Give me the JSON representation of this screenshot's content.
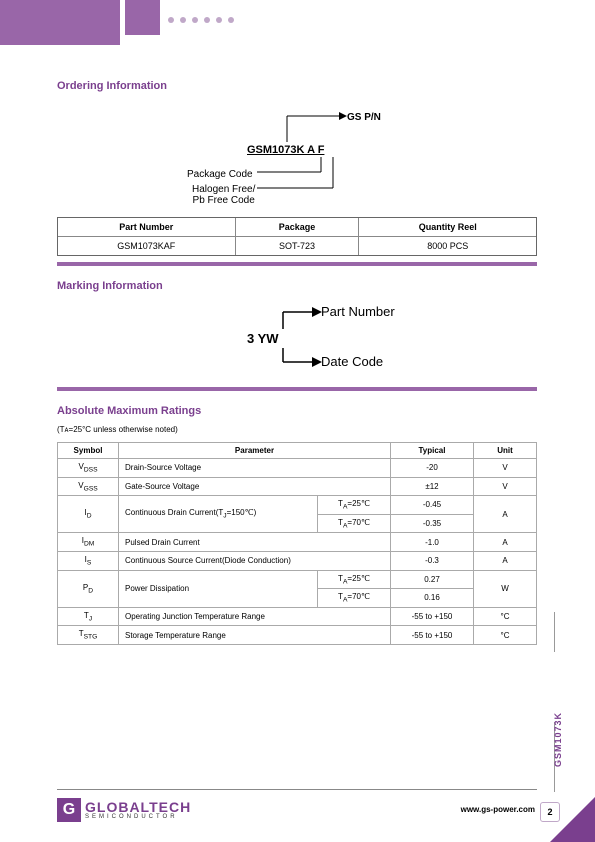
{
  "ordering": {
    "title": "Ordering Information",
    "partno": "GSM1073K A F",
    "gspn": "GS P/N",
    "package_code": "Package Code",
    "halogen": "Halogen Free/\nPb Free Code",
    "headers": [
      "Part Number",
      "Package",
      "Quantity Reel"
    ],
    "row": [
      "GSM1073KAF",
      "SOT-723",
      "8000 PCS"
    ]
  },
  "marking": {
    "title": "Marking Information",
    "code": "3 YW",
    "partnum_label": "Part Number",
    "datecode_label": "Date Code"
  },
  "ratings": {
    "title": "Absolute Maximum Ratings",
    "note": "(Tᴀ=25°C unless otherwise noted)",
    "headers": [
      "Symbol",
      "Parameter",
      "Typical",
      "Unit"
    ],
    "rows": [
      {
        "sym": "V<sub>DSS</sub>",
        "param": "Drain-Source Voltage",
        "cond": "",
        "typ": "-20",
        "unit": "V"
      },
      {
        "sym": "V<sub>GSS</sub>",
        "param": "Gate-Source Voltage",
        "cond": "",
        "typ": "±12",
        "unit": "V"
      },
      {
        "sym": "I<sub>D</sub>",
        "param": "Continuous Drain Current(T<sub>J</sub>=150℃)",
        "cond2": [
          "T<sub>A</sub>=25℃",
          "T<sub>A</sub>=70℃"
        ],
        "typ2": [
          "-0.45",
          "-0.35"
        ],
        "unit": "A",
        "rowspan": 2
      },
      {
        "sym": "I<sub>DM</sub>",
        "param": "Pulsed Drain Current",
        "cond": "",
        "typ": "-1.0",
        "unit": "A"
      },
      {
        "sym": "I<sub>S</sub>",
        "param": "Continuous Source Current(Diode Conduction)",
        "cond": "",
        "typ": "-0.3",
        "unit": "A"
      },
      {
        "sym": "P<sub>D</sub>",
        "param": "Power Dissipation",
        "cond2": [
          "T<sub>A</sub>=25℃",
          "T<sub>A</sub>=70℃"
        ],
        "typ2": [
          "0.27",
          "0.16"
        ],
        "unit": "W",
        "rowspan": 2
      },
      {
        "sym": "T<sub>J</sub>",
        "param": "Operating Junction Temperature Range",
        "cond": "",
        "typ": "-55 to +150",
        "unit": "°C"
      },
      {
        "sym": "T<sub>STG</sub>",
        "param": "Storage Temperature Range",
        "cond": "",
        "typ": "-55 to +150",
        "unit": "°C"
      }
    ]
  },
  "footer": {
    "brand_main": "GLOBALTECH",
    "brand_sub": "SEMICONDUCTOR",
    "url": "www.gs-power.com",
    "page": "2",
    "side_label": "GSM1073K"
  },
  "colors": {
    "purple": "#7a3f8e",
    "light_purple": "#9966a8"
  }
}
